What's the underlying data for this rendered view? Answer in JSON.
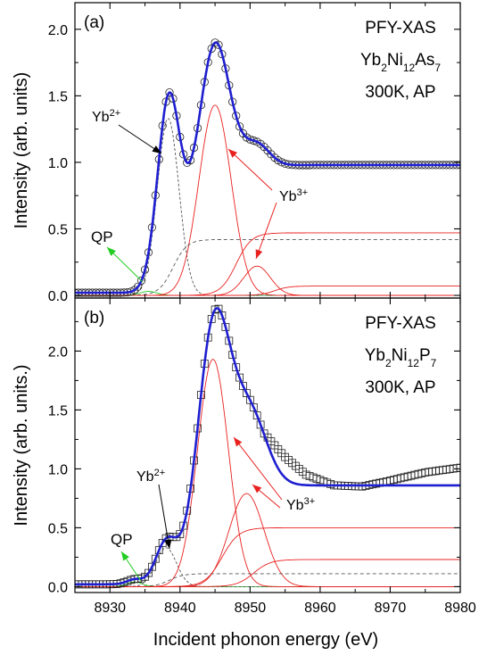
{
  "figure": {
    "xlabel": "Incident phonon energy (eV)",
    "x_ticks": [
      "8930",
      "8940",
      "8950",
      "8960",
      "8970",
      "8980"
    ]
  },
  "colors": {
    "fit": "#1f1fd0",
    "component": "#e8211f",
    "qp": "#22cc22",
    "background_step": "#555555",
    "markers": "#222222"
  },
  "chart_data": [
    {
      "type": "line",
      "panel": "(a)",
      "ylabel": "Intensity (arb. units)",
      "xlim": [
        8925,
        8980
      ],
      "ylim": [
        -0.02,
        2.2
      ],
      "y_ticks": [
        "0.0",
        "0.5",
        "1.0",
        "1.5",
        "2.0"
      ],
      "marker": "circle",
      "annotation": {
        "line1": "PFY-XAS",
        "formula": [
          "Yb",
          "2",
          "Ni",
          "12",
          "As",
          "7"
        ],
        "line3": "300K, AP"
      },
      "labels": {
        "yb2": [
          "Yb",
          "2+"
        ],
        "yb3": [
          "Yb",
          "3+"
        ],
        "qp": "QP"
      },
      "peaks": [
        {
          "name": "QP",
          "center": 8935.5,
          "amplitude": 0.03,
          "sigma": 1.2
        },
        {
          "name": "Yb2+",
          "center": 8938.3,
          "amplitude": 1.33,
          "sigma": 1.55
        },
        {
          "name": "Yb3+",
          "center": 8945.0,
          "amplitude": 1.43,
          "sigma": 2.3
        },
        {
          "name": "Yb3+",
          "center": 8951.0,
          "amplitude": 0.22,
          "sigma": 1.9
        }
      ],
      "steps": [
        {
          "center": 8939.0,
          "height": 0.42,
          "width": 1.0,
          "style": "dashed"
        },
        {
          "center": 8948.0,
          "height": 0.47,
          "width": 1.1,
          "style": "solid"
        },
        {
          "center": 8953.5,
          "height": 0.07,
          "width": 1.0,
          "style": "solid"
        }
      ],
      "baseline": 0.02
    },
    {
      "type": "line",
      "panel": "(b)",
      "ylabel": "Intensity (arb. units.)",
      "xlim": [
        8925,
        8980
      ],
      "ylim": [
        -0.05,
        2.45
      ],
      "y_ticks": [
        "0.0",
        "0.5",
        "1.0",
        "1.5",
        "2.0"
      ],
      "marker": "square",
      "annotation": {
        "line1": "PFY-XAS",
        "formula": [
          "Yb",
          "2",
          "Ni",
          "12",
          "P",
          "7"
        ],
        "line3": "300K, AP"
      },
      "labels": {
        "yb2": [
          "Yb",
          "2+"
        ],
        "yb3": [
          "Yb",
          "3+"
        ],
        "qp": "QP"
      },
      "peaks": [
        {
          "name": "QP",
          "center": 8933.5,
          "amplitude": 0.04,
          "sigma": 1.1
        },
        {
          "name": "Yb2+",
          "center": 8938.0,
          "amplitude": 0.33,
          "sigma": 1.5
        },
        {
          "name": "Yb3+",
          "center": 8944.7,
          "amplitude": 1.93,
          "sigma": 2.2
        },
        {
          "name": "Yb3+",
          "center": 8949.5,
          "amplitude": 0.79,
          "sigma": 2.5
        }
      ],
      "steps": [
        {
          "center": 8938.5,
          "height": 0.11,
          "width": 1.0,
          "style": "dashed"
        },
        {
          "center": 8946.0,
          "height": 0.5,
          "width": 1.2,
          "style": "solid"
        },
        {
          "center": 8950.5,
          "height": 0.23,
          "width": 1.2,
          "style": "solid"
        }
      ],
      "baseline": 0.02,
      "data_tail": {
        "from_x": 8952,
        "points": [
          [
            8952,
            1.3
          ],
          [
            8955,
            1.1
          ],
          [
            8958,
            0.95
          ],
          [
            8962,
            0.86
          ],
          [
            8966,
            0.85
          ],
          [
            8970,
            0.9
          ],
          [
            8975,
            0.97
          ],
          [
            8980,
            1.01
          ]
        ]
      }
    }
  ]
}
